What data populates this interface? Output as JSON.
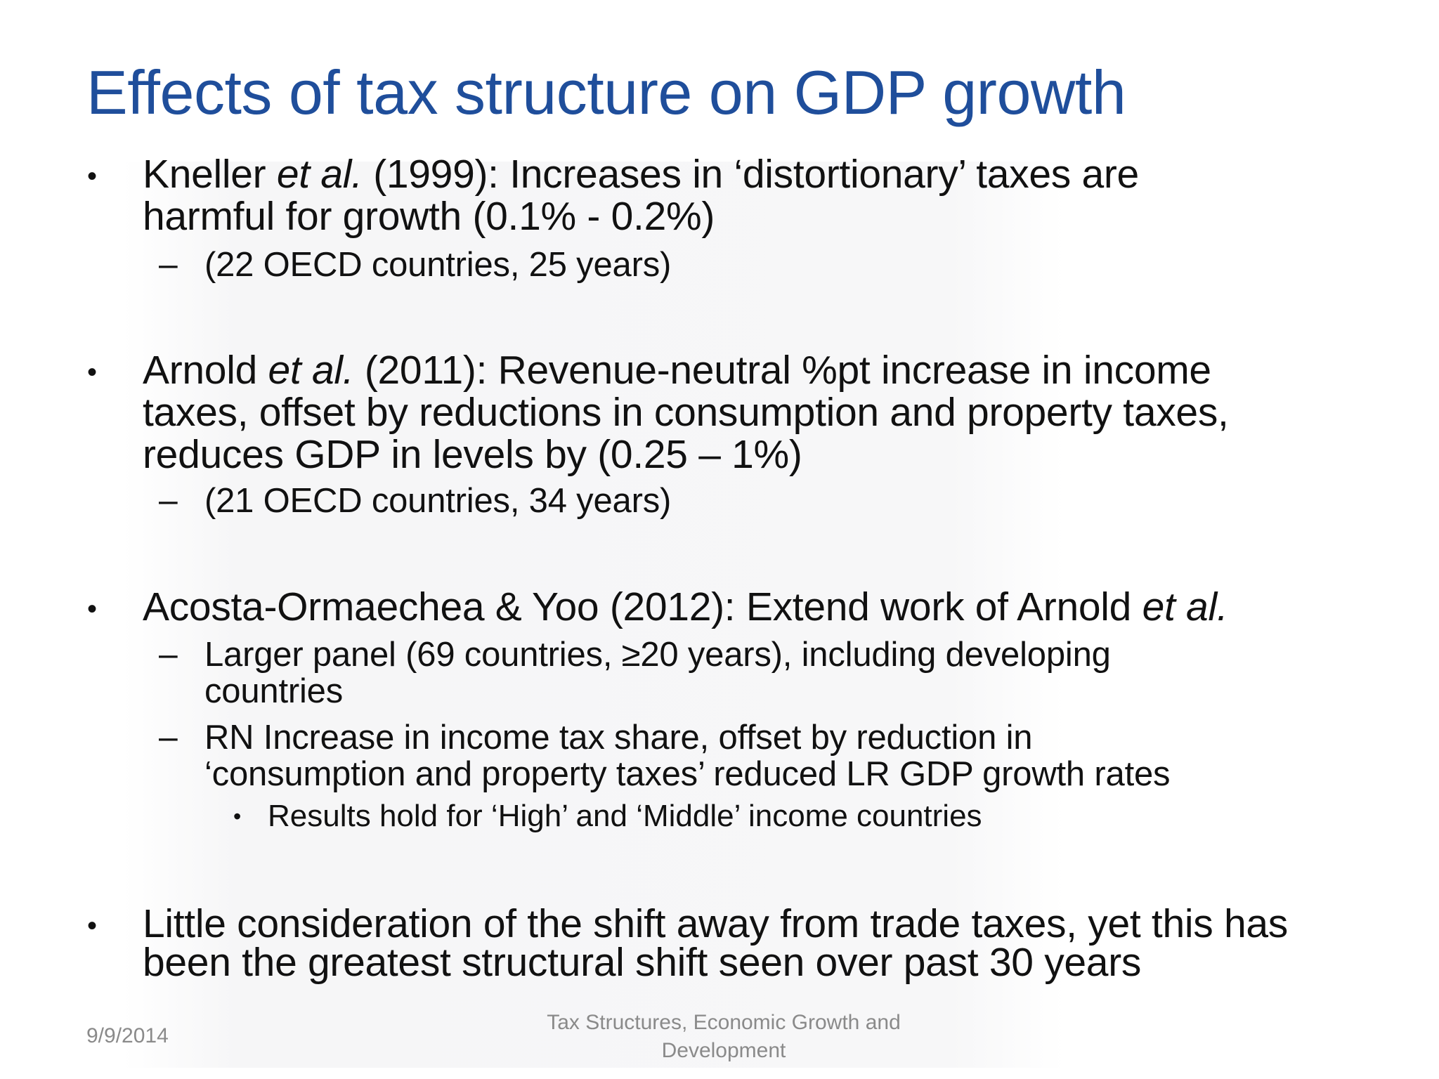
{
  "title": "Effects of tax structure on GDP growth",
  "bullets": [
    {
      "lines": [
        {
          "pre": "Kneller ",
          "em": "et al.",
          "post": " (1999): Increases in ‘distortionary’ taxes are"
        },
        {
          "text": "harmful for growth (0.1% - 0.2%)"
        }
      ],
      "sub": [
        {
          "lines": [
            "(22 OECD countries, 25 years)"
          ]
        }
      ]
    },
    {
      "lines": [
        {
          "pre": "Arnold ",
          "em": "et al.",
          "post": " (2011): Revenue-neutral %pt increase in income"
        },
        {
          "text": "taxes, offset by reductions in consumption and property taxes,"
        },
        {
          "text": "reduces GDP in levels by (0.25 – 1%)"
        }
      ],
      "sub": [
        {
          "lines": [
            "(21 OECD countries, 34 years)"
          ]
        }
      ]
    },
    {
      "lines": [
        {
          "pre": "Acosta-Ormaechea & Yoo (2012): Extend work of Arnold ",
          "em": "et al.",
          "post": ""
        }
      ],
      "sub": [
        {
          "lines": [
            "Larger panel (69 countries, ≥20 years), including developing",
            "countries"
          ]
        },
        {
          "lines": [
            "RN Increase in income tax share, offset by reduction in",
            "‘consumption and property taxes’ reduced LR GDP growth rates"
          ],
          "sub": [
            "Results hold for ‘High’ and ‘Middle’ income countries"
          ]
        }
      ]
    },
    {
      "lines": [
        {
          "text": "Little consideration of the shift away from trade taxes, yet this has"
        },
        {
          "text": "been the greatest structural shift seen over past 30 years"
        }
      ],
      "sub": []
    }
  ],
  "symbols": {
    "bullet": "•",
    "dash": "–"
  },
  "footer": {
    "date": "9/9/2014",
    "title_line1": "Tax Structures, Economic Growth and",
    "title_line2": "Development"
  }
}
